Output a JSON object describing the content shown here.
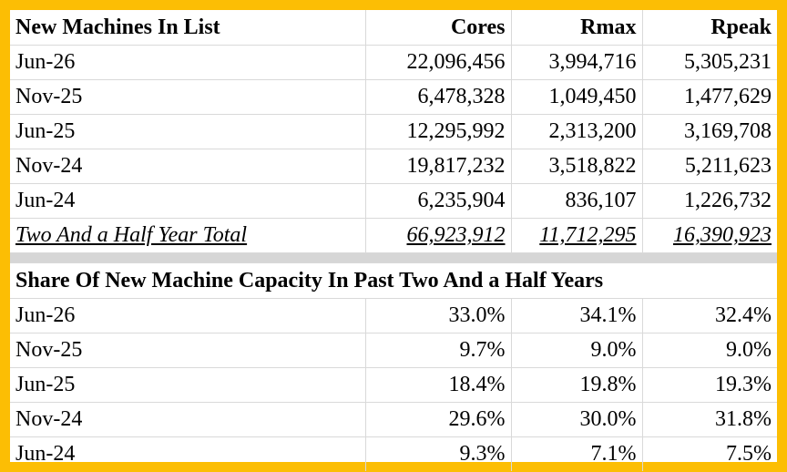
{
  "colors": {
    "border": "#fcbe04",
    "separator": "#d6d6d6",
    "gridline": "#d9d9d9"
  },
  "header": {
    "title": "New Machines In List",
    "cores": "Cores",
    "rmax": "Rmax",
    "rpeak": "Rpeak"
  },
  "machines": [
    {
      "period": "Jun-26",
      "cores": "22,096,456",
      "rmax": "3,994,716",
      "rpeak": "5,305,231"
    },
    {
      "period": "Nov-25",
      "cores": "6,478,328",
      "rmax": "1,049,450",
      "rpeak": "1,477,629"
    },
    {
      "period": "Jun-25",
      "cores": "12,295,992",
      "rmax": "2,313,200",
      "rpeak": "3,169,708"
    },
    {
      "period": "Nov-24",
      "cores": "19,817,232",
      "rmax": "3,518,822",
      "rpeak": "5,211,623"
    },
    {
      "period": "Jun-24",
      "cores": "6,235,904",
      "rmax": "836,107",
      "rpeak": "1,226,732"
    }
  ],
  "total": {
    "label": "Two And a Half Year Total",
    "cores": "66,923,912",
    "rmax": "11,712,295",
    "rpeak": "16,390,923"
  },
  "share": {
    "title": "Share Of New Machine Capacity In Past Two And a Half Years",
    "rows": [
      {
        "period": "Jun-26",
        "cores": "33.0%",
        "rmax": "34.1%",
        "rpeak": "32.4%"
      },
      {
        "period": "Nov-25",
        "cores": "9.7%",
        "rmax": "9.0%",
        "rpeak": "9.0%"
      },
      {
        "period": "Jun-25",
        "cores": "18.4%",
        "rmax": "19.8%",
        "rpeak": "19.3%"
      },
      {
        "period": "Nov-24",
        "cores": "29.6%",
        "rmax": "30.0%",
        "rpeak": "31.8%"
      },
      {
        "period": "Jun-24",
        "cores": "9.3%",
        "rmax": "7.1%",
        "rpeak": "7.5%"
      }
    ]
  }
}
